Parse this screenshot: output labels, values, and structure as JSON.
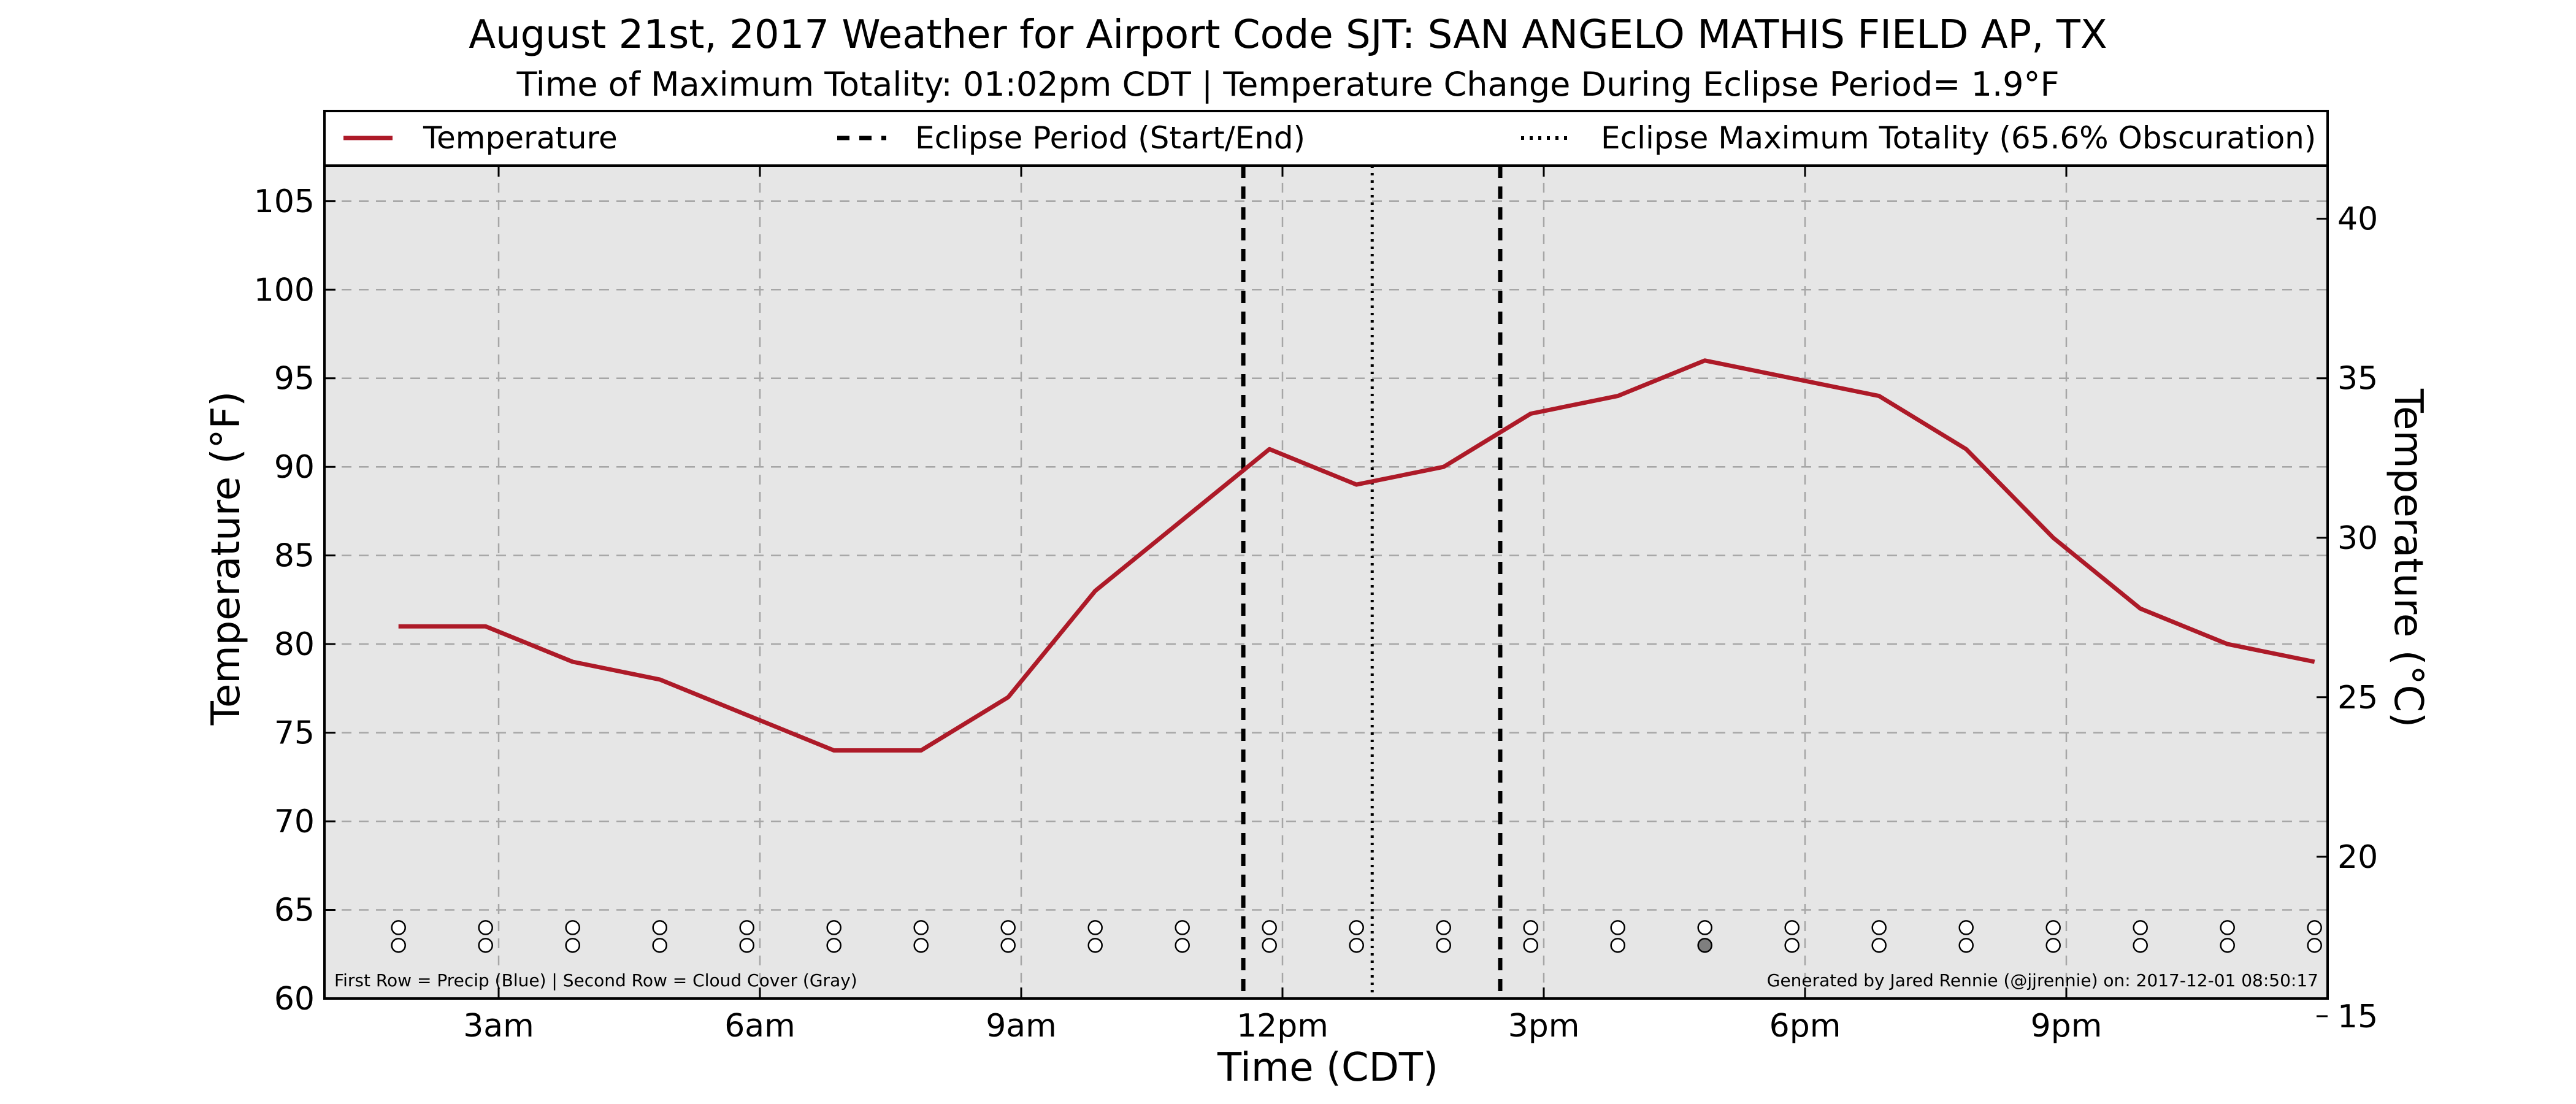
{
  "colors": {
    "temperature_line": "#ad1a28",
    "plot_background": "#e6e6e6",
    "grid": "#a6a6a6",
    "cloud_cover_gray": "#7f7f7f",
    "eclipse_lines": "#000000"
  },
  "chart_data": {
    "type": "line",
    "title": "August 21st, 2017 Weather for Airport Code SJT: SAN ANGELO MATHIS FIELD AP, TX",
    "subtitle": "Time of Maximum Totality: 01:02pm CDT | Temperature Change During Eclipse Period= 1.9°F",
    "xlabel": "Time (CDT)",
    "ylabel_left": "Temperature (°F)",
    "ylabel_right": "Temperature (°C)",
    "ylim": [
      60,
      107
    ],
    "yticks": [
      60,
      65,
      70,
      75,
      80,
      85,
      90,
      95,
      100,
      105
    ],
    "xlim_hours": [
      1,
      24
    ],
    "xticks": [
      {
        "hour": 3,
        "label": "3am"
      },
      {
        "hour": 6,
        "label": "6am"
      },
      {
        "hour": 9,
        "label": "9am"
      },
      {
        "hour": 12,
        "label": "12pm"
      },
      {
        "hour": 15,
        "label": "3pm"
      },
      {
        "hour": 18,
        "label": "6pm"
      },
      {
        "hour": 21,
        "label": "9pm"
      }
    ],
    "yticks_right": [
      15,
      20,
      25,
      30,
      35,
      40
    ],
    "grid": true,
    "legend_position": "top",
    "legend": [
      {
        "label": "Temperature",
        "style": "solid"
      },
      {
        "label": "Eclipse Period (Start/End)",
        "style": "dashed"
      },
      {
        "label": "Eclipse Maximum Totality (65.6% Obscuration)",
        "style": "dotted"
      }
    ],
    "series": [
      {
        "name": "Temperature",
        "x": [
          1.85,
          2.85,
          3.85,
          4.85,
          5.85,
          6.85,
          7.85,
          8.85,
          9.85,
          10.85,
          11.85,
          12.85,
          13.85,
          14.85,
          15.85,
          16.85,
          17.85,
          18.85,
          19.85,
          20.85,
          21.85,
          22.85,
          23.85
        ],
        "y": [
          81,
          81,
          79,
          78,
          76,
          74,
          74,
          77,
          83,
          87,
          91,
          89,
          90,
          93,
          94,
          96,
          95,
          94,
          91,
          86,
          82,
          80,
          79
        ]
      }
    ],
    "eclipse": {
      "start_hour": 11.55,
      "end_hour": 14.5,
      "max_totality_hour": 13.03
    },
    "markers": {
      "hours": [
        1.85,
        2.85,
        3.85,
        4.85,
        5.85,
        6.85,
        7.85,
        8.85,
        9.85,
        10.85,
        11.85,
        12.85,
        13.85,
        14.85,
        15.85,
        16.85,
        17.85,
        18.85,
        19.85,
        20.85,
        21.85,
        22.85,
        23.85
      ],
      "precip_row_value": 64,
      "cloud_row_value": 63,
      "cloud_cover_filled_index": 15
    },
    "footnote_left": "First Row = Precip (Blue) | Second Row = Cloud Cover (Gray)",
    "footnote_right": "Generated by Jared Rennie (@jjrennie) on: 2017-12-01 08:50:17"
  }
}
